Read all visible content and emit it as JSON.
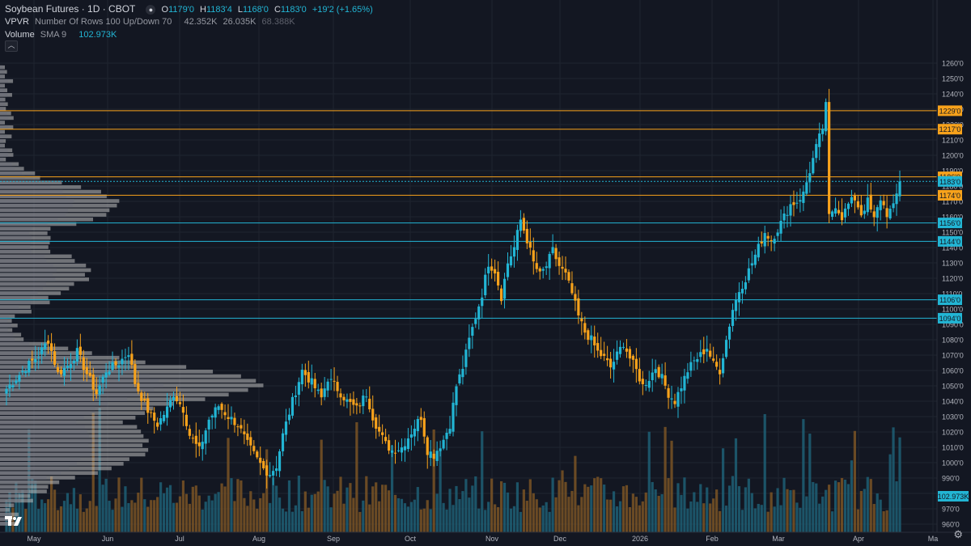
{
  "header": {
    "title": "Soybean Futures · 1D · CBOT",
    "ohlc": {
      "o_label": "O",
      "o": "1179'0",
      "h_label": "H",
      "h": "1183'4",
      "l_label": "L",
      "l": "1168'0",
      "c_label": "C",
      "c": "1183'0",
      "change": "+19'2 (+1.65%)"
    }
  },
  "vpvr": {
    "label": "VPVR",
    "params": "Number Of Rows 100 Up/Down 70",
    "up": "42.352K",
    "down": "26.035K",
    "total": "68.388K"
  },
  "volume": {
    "label": "Volume",
    "ma_label": "SMA 9",
    "ma_value": "102.973K"
  },
  "colors": {
    "background": "#131722",
    "up": "#22b5d4",
    "down": "#f7a21b",
    "grid": "#1f2430",
    "profile": "#787b86",
    "text": "#b2b5be"
  },
  "chart_data": {
    "type": "candlestick",
    "instrument": "Soybean Futures",
    "timeframe": "1D",
    "y_ticks": [
      "1260'0",
      "1250'0",
      "1240'0",
      "1230'0",
      "1220'0",
      "1210'0",
      "1200'0",
      "1190'0",
      "1180'0",
      "1170'0",
      "1160'0",
      "1150'0",
      "1140'0",
      "1130'0",
      "1120'0",
      "1110'0",
      "1100'0",
      "1090'0",
      "1080'0",
      "1070'0",
      "1060'0",
      "1050'0",
      "1040'0",
      "1030'0",
      "1020'0",
      "1010'0",
      "1000'0",
      "990'0",
      "980'0",
      "970'0",
      "960'0"
    ],
    "ylim": [
      956,
      1268
    ],
    "x_ticks": [
      "May",
      "Jun",
      "Jul",
      "Aug",
      "Sep",
      "Oct",
      "Nov",
      "Dec",
      "2026",
      "Feb",
      "Mar",
      "Apr",
      "Ma"
    ],
    "price_levels": [
      {
        "label": "1229'0",
        "value": 1229,
        "color": "#f7a21b"
      },
      {
        "label": "1217'0",
        "value": 1217,
        "color": "#f7a21b"
      },
      {
        "label": "1186'0",
        "value": 1186,
        "color": "#f7a21b"
      },
      {
        "label": "1183'0",
        "value": 1183,
        "color": "#22b5d4"
      },
      {
        "label": "1174'0",
        "value": 1174,
        "color": "#f7a21b"
      },
      {
        "label": "1156'0",
        "value": 1156,
        "color": "#22b5d4"
      },
      {
        "label": "1144'0",
        "value": 1144,
        "color": "#22b5d4"
      },
      {
        "label": "1106'0",
        "value": 1106,
        "color": "#22b5d4"
      },
      {
        "label": "1094'0",
        "value": 1094,
        "color": "#22b5d4"
      }
    ],
    "volume_ma_label": "102.973K",
    "waypoints": [
      [
        0,
        1048
      ],
      [
        3,
        1055
      ],
      [
        6,
        1062
      ],
      [
        10,
        1070
      ],
      [
        13,
        1080
      ],
      [
        16,
        1058
      ],
      [
        19,
        1063
      ],
      [
        22,
        1072
      ],
      [
        25,
        1058
      ],
      [
        28,
        1045
      ],
      [
        31,
        1060
      ],
      [
        35,
        1065
      ],
      [
        38,
        1072
      ],
      [
        40,
        1052
      ],
      [
        43,
        1038
      ],
      [
        45,
        1030
      ],
      [
        47,
        1025
      ],
      [
        50,
        1035
      ],
      [
        52,
        1045
      ],
      [
        55,
        1035
      ],
      [
        57,
        1018
      ],
      [
        60,
        1008
      ],
      [
        63,
        1028
      ],
      [
        66,
        1037
      ],
      [
        69,
        1030
      ],
      [
        72,
        1025
      ],
      [
        75,
        1012
      ],
      [
        78,
        1002
      ],
      [
        80,
        996
      ],
      [
        82,
        993
      ],
      [
        84,
        998
      ],
      [
        86,
        1018
      ],
      [
        89,
        1040
      ],
      [
        92,
        1060
      ],
      [
        95,
        1052
      ],
      [
        98,
        1042
      ],
      [
        100,
        1055
      ],
      [
        103,
        1048
      ],
      [
        106,
        1040
      ],
      [
        109,
        1035
      ],
      [
        112,
        1045
      ],
      [
        114,
        1030
      ],
      [
        116,
        1020
      ],
      [
        118,
        1012
      ],
      [
        120,
        1008
      ],
      [
        123,
        1010
      ],
      [
        126,
        1020
      ],
      [
        129,
        1030
      ],
      [
        131,
        1008
      ],
      [
        133,
        1005
      ],
      [
        136,
        1015
      ],
      [
        138,
        1025
      ],
      [
        140,
        1050
      ],
      [
        142,
        1062
      ],
      [
        144,
        1080
      ],
      [
        146,
        1095
      ],
      [
        148,
        1110
      ],
      [
        150,
        1130
      ],
      [
        152,
        1125
      ],
      [
        154,
        1108
      ],
      [
        156,
        1130
      ],
      [
        158,
        1140
      ],
      [
        160,
        1158
      ],
      [
        162,
        1145
      ],
      [
        164,
        1130
      ],
      [
        166,
        1122
      ],
      [
        168,
        1128
      ],
      [
        170,
        1138
      ],
      [
        172,
        1128
      ],
      [
        174,
        1122
      ],
      [
        176,
        1110
      ],
      [
        178,
        1095
      ],
      [
        180,
        1085
      ],
      [
        182,
        1080
      ],
      [
        184,
        1072
      ],
      [
        186,
        1068
      ],
      [
        188,
        1062
      ],
      [
        190,
        1070
      ],
      [
        192,
        1078
      ],
      [
        194,
        1068
      ],
      [
        196,
        1060
      ],
      [
        198,
        1050
      ],
      [
        200,
        1055
      ],
      [
        202,
        1062
      ],
      [
        204,
        1055
      ],
      [
        206,
        1045
      ],
      [
        208,
        1040
      ],
      [
        210,
        1050
      ],
      [
        212,
        1060
      ],
      [
        214,
        1066
      ],
      [
        216,
        1070
      ],
      [
        218,
        1075
      ],
      [
        220,
        1064
      ],
      [
        222,
        1060
      ],
      [
        224,
        1080
      ],
      [
        226,
        1100
      ],
      [
        228,
        1112
      ],
      [
        230,
        1120
      ],
      [
        232,
        1130
      ],
      [
        234,
        1140
      ],
      [
        236,
        1150
      ],
      [
        238,
        1145
      ],
      [
        240,
        1152
      ],
      [
        242,
        1160
      ],
      [
        244,
        1168
      ],
      [
        246,
        1170
      ],
      [
        248,
        1175
      ],
      [
        250,
        1190
      ],
      [
        252,
        1205
      ],
      [
        254,
        1218
      ],
      [
        255,
        1232
      ],
      [
        256,
        1160
      ],
      [
        258,
        1168
      ],
      [
        260,
        1160
      ],
      [
        262,
        1168
      ],
      [
        264,
        1172
      ],
      [
        266,
        1162
      ],
      [
        268,
        1170
      ],
      [
        270,
        1158
      ],
      [
        272,
        1172
      ],
      [
        274,
        1162
      ],
      [
        276,
        1166
      ],
      [
        278,
        1183
      ]
    ]
  }
}
